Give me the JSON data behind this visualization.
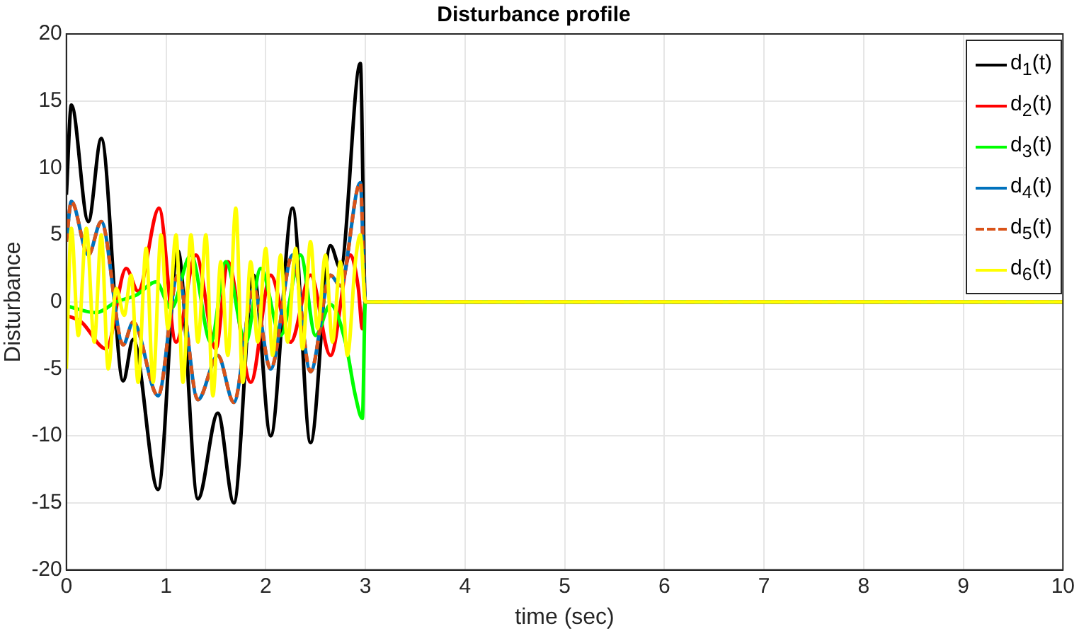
{
  "chart_data": {
    "type": "line",
    "title": "Disturbance profile",
    "xlabel": "time (sec)",
    "ylabel": "Disturbance",
    "xlim": [
      0,
      10
    ],
    "xticks": [
      0,
      1,
      2,
      3,
      4,
      5,
      6,
      7,
      8,
      9,
      10
    ],
    "ylim": [
      -20,
      20
    ],
    "yticks": [
      -20,
      -15,
      -10,
      -5,
      0,
      5,
      10,
      15,
      20
    ],
    "grid": true,
    "legend": "top right",
    "marker": "none",
    "series": [
      {
        "name": "d$_{1}$(t)",
        "color": "#000000",
        "x": [
          0,
          0.05,
          0.22,
          0.35,
          0.57,
          0.67,
          0.92,
          1.12,
          1.32,
          1.52,
          1.68,
          1.88,
          2.05,
          2.27,
          2.45,
          2.65,
          2.75,
          2.95,
          3.0,
          10
        ],
        "values": [
          8,
          14.7,
          6,
          12.2,
          -5.9,
          -2.8,
          -14,
          3.8,
          -14.7,
          -8.3,
          -15,
          2,
          -10,
          7,
          -10.5,
          4.2,
          2.5,
          17.8,
          0,
          0
        ]
      },
      {
        "name": "d$_{2}$(t)",
        "color": "#ff0000",
        "x": [
          0,
          0.15,
          0.4,
          0.6,
          0.72,
          0.93,
          1.1,
          1.3,
          1.5,
          1.62,
          1.85,
          2.05,
          2.25,
          2.45,
          2.65,
          2.85,
          2.93,
          2.97,
          3.0,
          10
        ],
        "values": [
          -1,
          -1.5,
          -3.5,
          2.5,
          0.8,
          7,
          -3,
          3.5,
          -3.5,
          3,
          -6,
          2,
          -3,
          2,
          -4,
          3.5,
          1,
          -2,
          0,
          0
        ]
      },
      {
        "name": "d$_{3}$(t)",
        "color": "#00ff00",
        "x": [
          0,
          0.3,
          0.5,
          0.7,
          0.9,
          1.05,
          1.25,
          1.45,
          1.6,
          1.8,
          1.95,
          2.15,
          2.35,
          2.5,
          2.65,
          2.8,
          2.9,
          2.97,
          3.0,
          10
        ],
        "values": [
          -0.3,
          -0.8,
          0,
          0.5,
          1.5,
          -0.5,
          3.5,
          -3,
          3,
          -3,
          2.5,
          -2.5,
          3.5,
          -2.5,
          -0.2,
          -3,
          -7,
          -8.7,
          0,
          0
        ]
      },
      {
        "name": "d$_{4}$(t)",
        "color": "#0072bd",
        "x": [
          0,
          0.05,
          0.22,
          0.35,
          0.57,
          0.67,
          0.92,
          1.12,
          1.32,
          1.52,
          1.68,
          1.88,
          2.05,
          2.27,
          2.45,
          2.65,
          2.75,
          2.95,
          3.0,
          10
        ],
        "values": [
          4.5,
          7.5,
          3.5,
          6,
          -3.2,
          -1.5,
          -7,
          2,
          -7.3,
          -4,
          -7.5,
          1,
          -5,
          3.5,
          -5.2,
          2,
          1.2,
          8.9,
          0,
          0
        ]
      },
      {
        "name": "d$_{5}$(t)",
        "color": "#d95319",
        "line_style": "dashed",
        "x": [
          0,
          0.05,
          0.22,
          0.35,
          0.57,
          0.67,
          0.92,
          1.12,
          1.32,
          1.52,
          1.68,
          1.88,
          2.05,
          2.27,
          2.45,
          2.65,
          2.75,
          2.95,
          3.0,
          10
        ],
        "values": [
          4.5,
          7.5,
          3.5,
          6,
          -3.2,
          -1.5,
          -7,
          2,
          -7.3,
          -4,
          -7.5,
          1,
          -5,
          3.5,
          -5.2,
          2,
          1.2,
          8.9,
          0,
          0
        ]
      },
      {
        "name": "d$_{6}$(t)",
        "color": "#ffff00",
        "x": [
          0,
          0.05,
          0.12,
          0.2,
          0.28,
          0.35,
          0.42,
          0.5,
          0.58,
          0.65,
          0.72,
          0.8,
          0.87,
          0.95,
          1.02,
          1.1,
          1.17,
          1.25,
          1.32,
          1.4,
          1.47,
          1.55,
          1.62,
          1.7,
          1.77,
          1.85,
          1.92,
          2.0,
          2.07,
          2.15,
          2.22,
          2.3,
          2.37,
          2.45,
          2.52,
          2.6,
          2.67,
          2.75,
          2.82,
          2.9,
          2.95,
          3.0,
          10
        ],
        "values": [
          -5,
          5.5,
          -2.5,
          5.5,
          -3,
          5,
          -5,
          1,
          -1,
          2,
          -6,
          4,
          -6,
          5,
          -2,
          5,
          -6,
          5,
          -3,
          5,
          -7,
          3,
          -4,
          7,
          -6,
          3,
          -3,
          4,
          -4,
          3.5,
          -3,
          4,
          -3.5,
          4.5,
          -2,
          3.5,
          -3,
          3,
          -4,
          3,
          5,
          0,
          0
        ]
      }
    ]
  }
}
